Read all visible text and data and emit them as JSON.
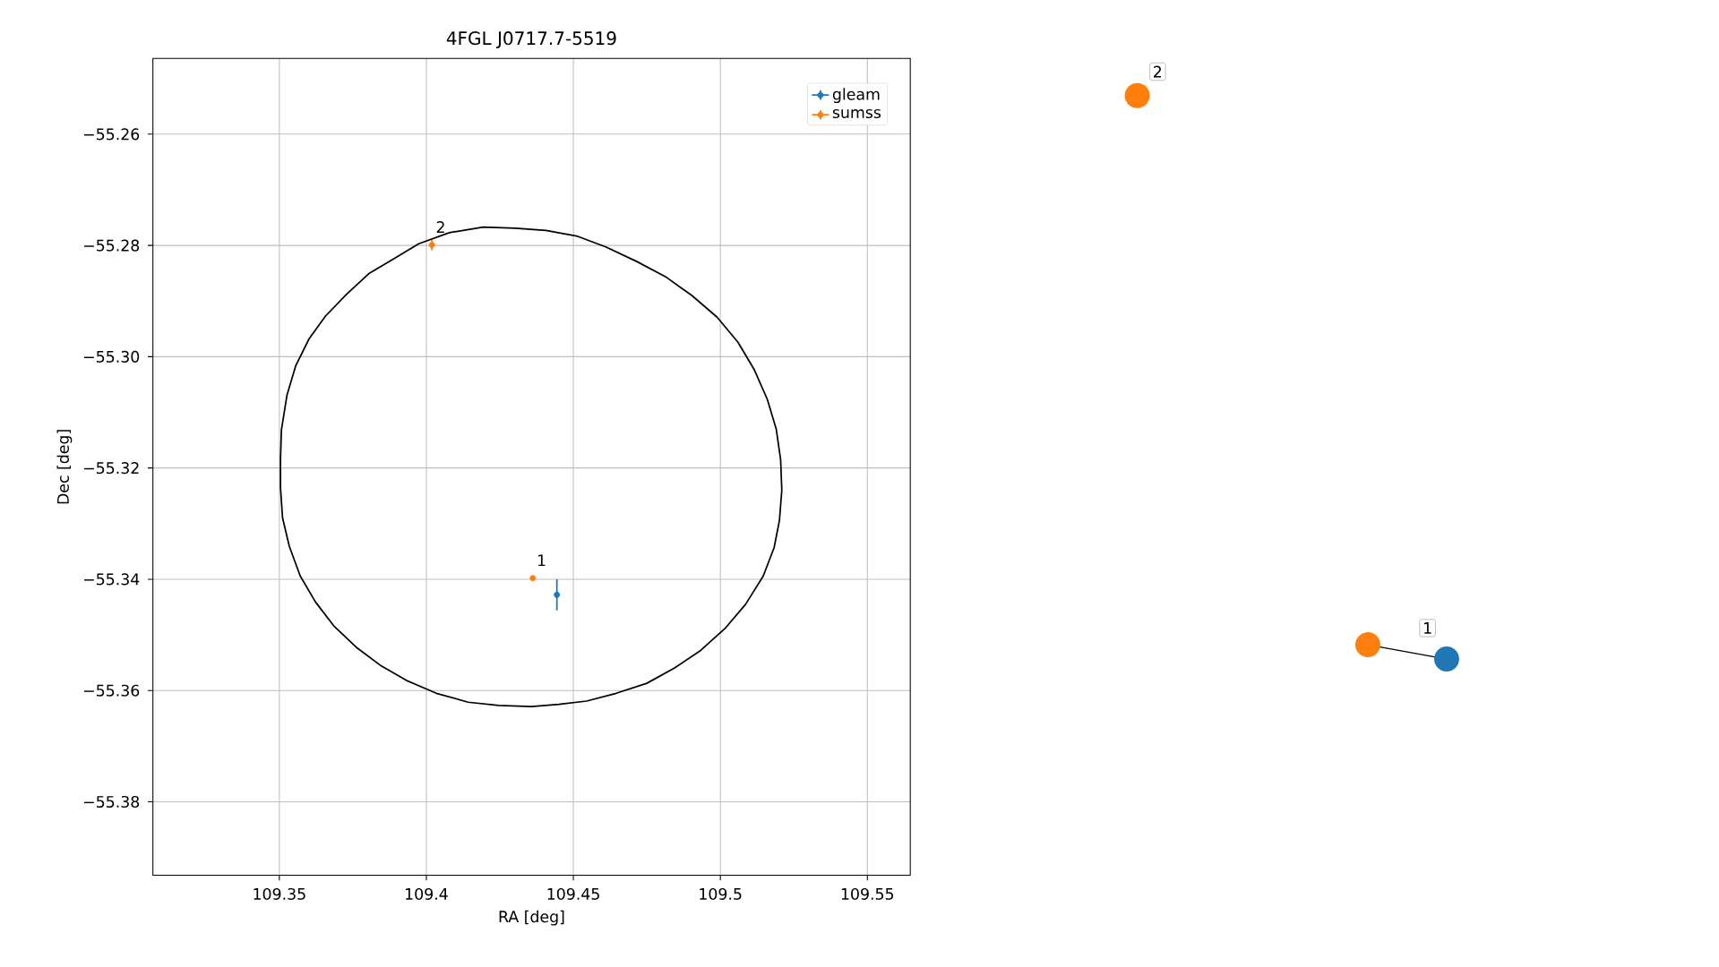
{
  "chart_data": [
    {
      "type": "scatter",
      "title": "4FGL J0717.7-5519",
      "xlabel": "RA [deg]",
      "ylabel": "Dec [deg]",
      "xlim": [
        109.307,
        109.5646
      ],
      "ylim": [
        -55.3932,
        -55.2464
      ],
      "xticks": [
        109.35,
        109.4,
        109.45,
        109.5,
        109.55
      ],
      "yticks": [
        {
          "value": -55.38,
          "label": "−55.38"
        },
        {
          "value": -55.36,
          "label": "−55.36"
        },
        {
          "value": -55.34,
          "label": "−55.34"
        },
        {
          "value": -55.32,
          "label": "−55.32"
        },
        {
          "value": -55.3,
          "label": "−55.30"
        },
        {
          "value": -55.28,
          "label": "−55.28"
        },
        {
          "value": -55.26,
          "label": "−55.26"
        }
      ],
      "grid": true,
      "legend": "top right",
      "marker": "circle",
      "series": [
        {
          "name": "gleam",
          "color": "#1f77b4",
          "x": [
            109.4444
          ],
          "values": [
            -55.3428
          ],
          "errors": [
            0.0028
          ]
        },
        {
          "name": "sumss",
          "color": "#ff7f0e",
          "x": [
            109.4362,
            109.4019
          ],
          "values": [
            -55.3398,
            -55.2799
          ],
          "errors": [
            null,
            0.001
          ]
        }
      ],
      "annotations": [
        {
          "text": "1",
          "x": 109.4362,
          "y": -55.3398
        },
        {
          "text": "2",
          "x": 109.4019,
          "y": -55.2799
        }
      ]
    },
    {
      "type": "other",
      "colors": [
        "#ff7f0e",
        "#ff7f0e",
        "#1f77b4"
      ],
      "annotations": [
        "2",
        "1"
      ]
    }
  ]
}
